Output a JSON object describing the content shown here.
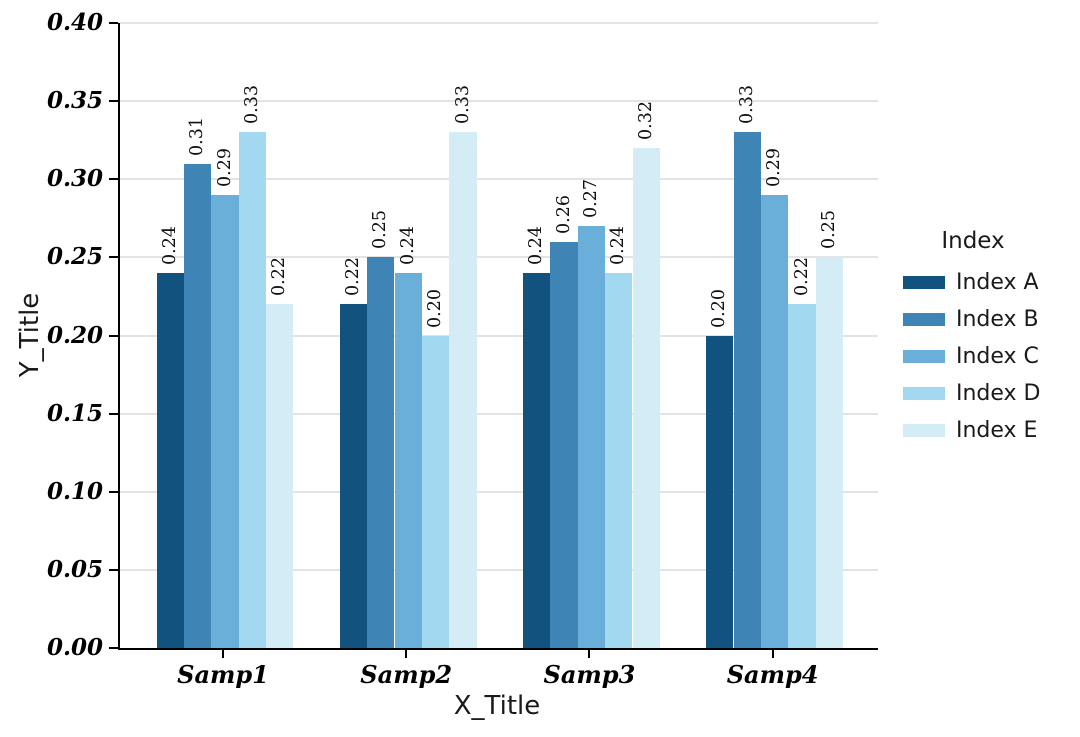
{
  "chart_data": {
    "type": "bar",
    "title": "",
    "xlabel": "X_Title",
    "ylabel": "Y_Title",
    "categories": [
      "Samp1",
      "Samp2",
      "Samp3",
      "Samp4"
    ],
    "series": [
      {
        "name": "Index A",
        "color": "#12527F",
        "values": [
          0.24,
          0.22,
          0.24,
          0.2
        ]
      },
      {
        "name": "Index B",
        "color": "#3E84B5",
        "values": [
          0.31,
          0.25,
          0.26,
          0.33
        ]
      },
      {
        "name": "Index C",
        "color": "#69AFDA",
        "values": [
          0.29,
          0.24,
          0.27,
          0.29
        ]
      },
      {
        "name": "Index D",
        "color": "#A2D9F0",
        "values": [
          0.33,
          0.2,
          0.24,
          0.22
        ]
      },
      {
        "name": "Index E",
        "color": "#D3ECF6",
        "values": [
          0.22,
          0.33,
          0.32,
          0.25
        ]
      }
    ],
    "ylim": [
      0,
      0.4
    ],
    "ytick_labels": [
      "0.00",
      "0.05",
      "0.10",
      "0.15",
      "0.20",
      "0.25",
      "0.30",
      "0.35",
      "0.40"
    ],
    "bar_value_labels_shown": true,
    "grid": "horizontal",
    "legend_title": "Index",
    "legend_position": "right",
    "colors": {
      "gridline": "#e3e3e3",
      "axis": "#000000",
      "text": "#1a1a1a"
    }
  }
}
